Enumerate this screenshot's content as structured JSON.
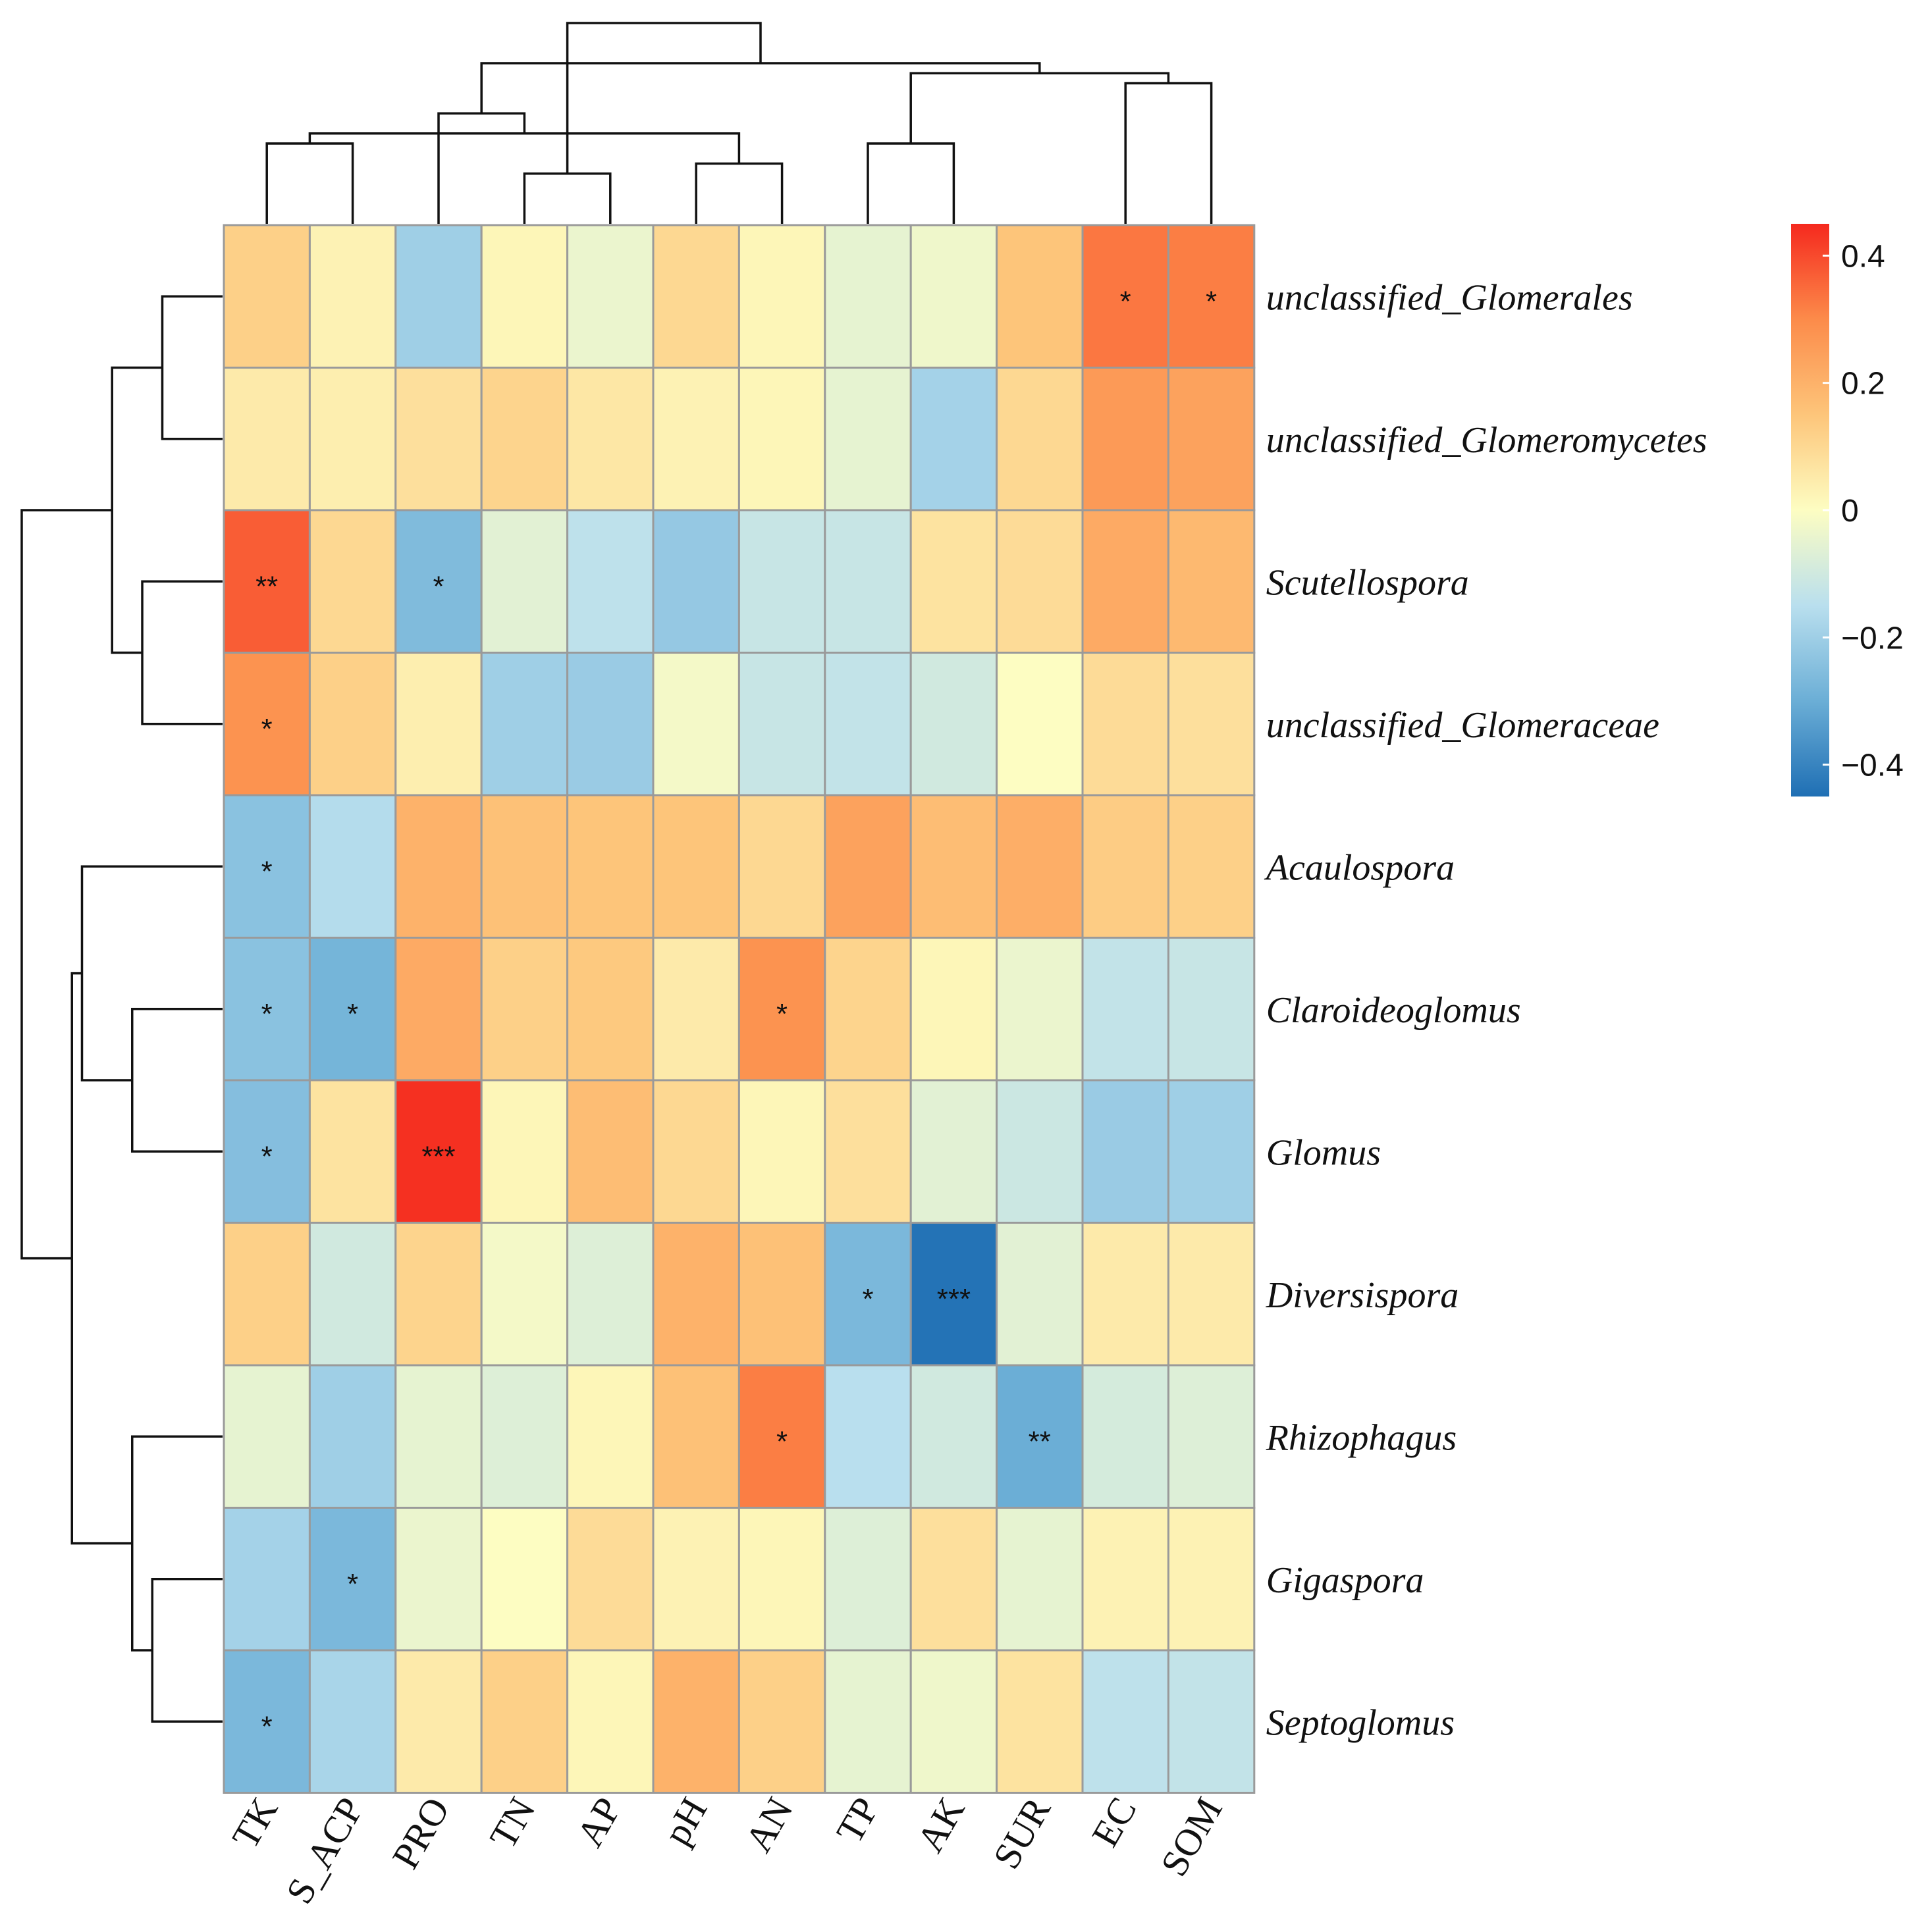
{
  "chart_data": {
    "type": "heatmap",
    "title": "",
    "rows": [
      "unclassified_Glomerales",
      "unclassified_Glomeromycetes",
      "Scutellospora",
      "unclassified_Glomeraceae",
      "Acaulospora",
      "Claroideoglomus",
      "Glomus",
      "Diversispora",
      "Rhizophagus",
      "Gigaspora",
      "Septoglomus"
    ],
    "columns": [
      "TK",
      "S_ACP",
      "PRO",
      "TN",
      "AP",
      "pH",
      "AN",
      "TP",
      "AK",
      "SUR",
      "EC",
      "SOM"
    ],
    "values": [
      [
        0.12,
        0.03,
        -0.2,
        0.02,
        -0.04,
        0.1,
        0.02,
        -0.05,
        -0.03,
        0.15,
        0.33,
        0.32
      ],
      [
        0.05,
        0.04,
        0.08,
        0.11,
        0.06,
        0.03,
        0.02,
        -0.05,
        -0.19,
        0.1,
        0.26,
        0.24
      ],
      [
        0.37,
        0.1,
        -0.26,
        -0.06,
        -0.14,
        -0.22,
        -0.12,
        -0.12,
        0.07,
        0.09,
        0.22,
        0.18
      ],
      [
        0.28,
        0.12,
        0.04,
        -0.2,
        -0.21,
        -0.02,
        -0.12,
        -0.13,
        -0.1,
        0.0,
        0.09,
        0.08
      ],
      [
        -0.24,
        -0.16,
        0.2,
        0.16,
        0.15,
        0.15,
        0.1,
        0.24,
        0.17,
        0.21,
        0.13,
        0.12
      ],
      [
        -0.24,
        -0.28,
        0.22,
        0.12,
        0.14,
        0.05,
        0.28,
        0.11,
        0.02,
        -0.04,
        -0.13,
        -0.12
      ],
      [
        -0.25,
        0.07,
        0.44,
        0.02,
        0.17,
        0.1,
        0.02,
        0.08,
        -0.06,
        -0.11,
        -0.21,
        -0.2
      ],
      [
        0.12,
        -0.1,
        0.11,
        -0.02,
        -0.07,
        0.2,
        0.16,
        -0.27,
        -0.44,
        -0.06,
        0.05,
        0.05
      ],
      [
        -0.05,
        -0.2,
        -0.05,
        -0.07,
        0.02,
        0.16,
        0.32,
        -0.15,
        -0.1,
        -0.3,
        -0.09,
        -0.07
      ],
      [
        -0.19,
        -0.27,
        -0.04,
        0.0,
        0.09,
        0.03,
        0.02,
        -0.07,
        0.08,
        -0.05,
        0.03,
        0.03
      ],
      [
        -0.27,
        -0.18,
        0.05,
        0.12,
        0.02,
        0.2,
        0.12,
        -0.05,
        -0.03,
        0.07,
        -0.14,
        -0.13
      ]
    ],
    "significance": [
      [
        "",
        "",
        "",
        "",
        "",
        "",
        "",
        "",
        "",
        "",
        "*",
        "*"
      ],
      [
        "",
        "",
        "",
        "",
        "",
        "",
        "",
        "",
        "",
        "",
        "",
        ""
      ],
      [
        "**",
        "",
        "*",
        "",
        "",
        "",
        "",
        "",
        "",
        "",
        "",
        ""
      ],
      [
        "*",
        "",
        "",
        "",
        "",
        "",
        "",
        "",
        "",
        "",
        "",
        ""
      ],
      [
        "*",
        "",
        "",
        "",
        "",
        "",
        "",
        "",
        "",
        "",
        "",
        ""
      ],
      [
        "*",
        "*",
        "",
        "",
        "",
        "",
        "*",
        "",
        "",
        "",
        "",
        ""
      ],
      [
        "*",
        "",
        "***",
        "",
        "",
        "",
        "",
        "",
        "",
        "",
        "",
        ""
      ],
      [
        "",
        "",
        "",
        "",
        "",
        "",
        "",
        "*",
        "***",
        "",
        "",
        ""
      ],
      [
        "",
        "",
        "",
        "",
        "",
        "",
        "*",
        "",
        "",
        "**",
        "",
        ""
      ],
      [
        "",
        "*",
        "",
        "",
        "",
        "",
        "",
        "",
        "",
        "",
        "",
        ""
      ],
      [
        "*",
        "",
        "",
        "",
        "",
        "",
        "",
        "",
        "",
        "",
        "",
        ""
      ]
    ],
    "color_scale": {
      "min": -0.45,
      "max": 0.45,
      "ticks": [
        0.4,
        0.2,
        0,
        -0.2,
        -0.4
      ],
      "tick_labels": [
        "0.4",
        "0.2",
        "0",
        "−0.2",
        "−0.4"
      ],
      "colors": [
        "#1f6fb4",
        "#6baed6",
        "#b9dfee",
        "#fdfdc2",
        "#fdc57a",
        "#fc8b4a",
        "#f5291e"
      ]
    },
    "column_dendrogram": [
      [
        0,
        1,
        0.4
      ],
      [
        3,
        4,
        0.25
      ],
      [
        5,
        6,
        0.3
      ],
      [
        12,
        14,
        0.45
      ],
      [
        2,
        15,
        0.55
      ],
      [
        7,
        8,
        0.4
      ],
      [
        10,
        11,
        0.7
      ],
      [
        17,
        18,
        0.75
      ],
      [
        16,
        19,
        0.8
      ],
      [
        13,
        20,
        1.0
      ]
    ],
    "row_dendrogram": [
      [
        0,
        1,
        0.3
      ],
      [
        2,
        3,
        0.4
      ],
      [
        11,
        12,
        0.55
      ],
      [
        5,
        6,
        0.45
      ],
      [
        4,
        14,
        0.7
      ],
      [
        9,
        10,
        0.35
      ],
      [
        8,
        16,
        0.45
      ],
      [
        15,
        17,
        0.75
      ],
      [
        13,
        18,
        1.0
      ]
    ]
  }
}
